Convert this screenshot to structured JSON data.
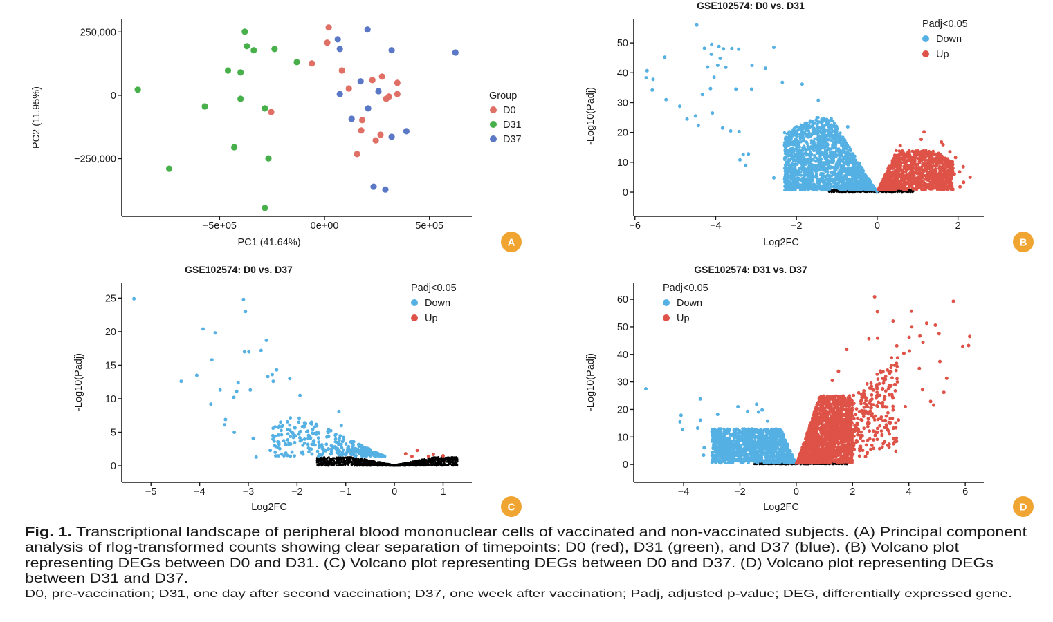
{
  "colors": {
    "D0": "#e06f66",
    "D31": "#47b04b",
    "D37": "#5b78c6",
    "down": "#55b0e3",
    "up": "#de5247",
    "ns": "#000000",
    "badge": "#f0a431"
  },
  "chart_data": [
    {
      "panel": "A",
      "type": "scatter",
      "title": "",
      "xlabel": "PC1 (41.64%)",
      "ylabel": "PC2 (11.95%)",
      "xlim": [
        -966000,
        702000
      ],
      "ylim": [
        -478000,
        300000
      ],
      "xticks": [
        {
          "v": -500000,
          "label": "−5e+05"
        },
        {
          "v": 0,
          "label": "0e+00"
        },
        {
          "v": 500000,
          "label": "5e+05"
        }
      ],
      "yticks": [
        {
          "v": 250000,
          "label": "250,000"
        },
        {
          "v": 0,
          "label": "0"
        },
        {
          "v": -250000,
          "label": "−250,000"
        }
      ],
      "legend": {
        "title": "Group",
        "position": "right"
      },
      "series": [
        {
          "name": "D0",
          "color_key": "D0",
          "points": [
            [
              20000,
              268000
            ],
            [
              13000,
              208000
            ],
            [
              -60000,
              126000
            ],
            [
              83000,
              98000
            ],
            [
              274000,
              74000
            ],
            [
              228000,
              60000
            ],
            [
              347000,
              49000
            ],
            [
              116000,
              27000
            ],
            [
              347000,
              5000
            ],
            [
              307000,
              -5000
            ],
            [
              294000,
              -14000
            ],
            [
              -254000,
              -66000
            ],
            [
              180000,
              -98000
            ],
            [
              175000,
              -139000
            ],
            [
              267000,
              -156000
            ],
            [
              244000,
              -178000
            ],
            [
              155000,
              -232000
            ]
          ]
        },
        {
          "name": "D31",
          "color_key": "D31",
          "points": [
            [
              -380000,
              251000
            ],
            [
              -370000,
              194000
            ],
            [
              -337000,
              178000
            ],
            [
              -238000,
              183000
            ],
            [
              -132000,
              131000
            ],
            [
              -460000,
              98000
            ],
            [
              -400000,
              90000
            ],
            [
              -890000,
              22000
            ],
            [
              -400000,
              -14000
            ],
            [
              -570000,
              -44000
            ],
            [
              -284000,
              -52000
            ],
            [
              -430000,
              -205000
            ],
            [
              -267000,
              -249000
            ],
            [
              -740000,
              -290000
            ],
            [
              -284000,
              -445000
            ]
          ]
        },
        {
          "name": "D37",
          "color_key": "D37",
          "points": [
            [
              205000,
              260000
            ],
            [
              63000,
              221000
            ],
            [
              73000,
              183000
            ],
            [
              320000,
              178000
            ],
            [
              624000,
              169000
            ],
            [
              172000,
              55000
            ],
            [
              257000,
              16000
            ],
            [
              73000,
              5000
            ],
            [
              208000,
              -52000
            ],
            [
              129000,
              -93000
            ],
            [
              390000,
              -142000
            ],
            [
              320000,
              -164000
            ],
            [
              234000,
              -361000
            ],
            [
              290000,
              -372000
            ]
          ]
        }
      ]
    },
    {
      "panel": "B",
      "type": "scatter",
      "title": "GSE102574: D0 vs. D31",
      "xlabel": "Log2FC",
      "ylabel": "-Log10(Padj)",
      "xlim": [
        -6.03,
        2.64
      ],
      "ylim": [
        -8.1,
        57.9
      ],
      "xticks": [
        {
          "v": -6,
          "label": "−6"
        },
        {
          "v": -4,
          "label": "−4"
        },
        {
          "v": -2,
          "label": "−2"
        },
        {
          "v": 0,
          "label": "0"
        },
        {
          "v": 2,
          "label": "2"
        }
      ],
      "yticks": [
        {
          "v": 0,
          "label": "0"
        },
        {
          "v": 10,
          "label": "10"
        },
        {
          "v": 20,
          "label": "20"
        },
        {
          "v": 30,
          "label": "30"
        },
        {
          "v": 40,
          "label": "40"
        },
        {
          "v": 50,
          "label": "50"
        }
      ],
      "legend": {
        "title": "Padj<0.05",
        "position": "top-right"
      },
      "series": [
        {
          "name": "Down",
          "color_key": "down",
          "points": [
            [
              -4.47,
              56
            ],
            [
              -5.26,
              45.2
            ],
            [
              -5.7,
              40.7
            ],
            [
              -5.72,
              38.3
            ],
            [
              -5.55,
              37.8
            ],
            [
              -5.57,
              34.2
            ],
            [
              -5.23,
              31
            ],
            [
              -4.89,
              28.8
            ],
            [
              -4.71,
              24.5
            ],
            [
              -4.5,
              25.5
            ],
            [
              -4.43,
              22.3
            ],
            [
              -4.28,
              48.2
            ],
            [
              -4.1,
              49.5
            ],
            [
              -3.92,
              48.8
            ],
            [
              -3.81,
              48
            ],
            [
              -3.6,
              48.1
            ],
            [
              -3.43,
              47.9
            ],
            [
              -2.56,
              48.5
            ],
            [
              -4.11,
              46.2
            ],
            [
              -3.89,
              44.8
            ],
            [
              -4.2,
              41.9
            ],
            [
              -3.95,
              42.5
            ],
            [
              -3.75,
              41.8
            ],
            [
              -3.1,
              42.5
            ],
            [
              -2.77,
              41.5
            ],
            [
              -4.04,
              38.5
            ],
            [
              -4.13,
              34.7
            ],
            [
              -4.33,
              32.7
            ],
            [
              -4.08,
              26.5
            ],
            [
              -3.83,
              21.5
            ],
            [
              -3.63,
              20.5
            ],
            [
              -3.42,
              20.3
            ],
            [
              -1.86,
              36.2
            ],
            [
              -2.35,
              36.8
            ],
            [
              -3.5,
              34.5
            ],
            [
              -3.11,
              34.5
            ],
            [
              -3.32,
              12.6
            ],
            [
              -3.19,
              12.8
            ],
            [
              -3.4,
              10.8
            ],
            [
              -3.26,
              9
            ],
            [
              -2.56,
              4.8
            ],
            [
              -1.99,
              2
            ],
            [
              -1.46,
              30.8
            ],
            [
              -0.73,
              21.9
            ]
          ]
        },
        {
          "name": "Up",
          "color_key": "up",
          "points": [
            [
              1.16,
              20.2
            ],
            [
              1.09,
              17.7
            ],
            [
              1.59,
              16.8
            ],
            [
              1.63,
              15.9
            ],
            [
              1.8,
              13.5
            ],
            [
              1.94,
              11.6
            ],
            [
              2.13,
              8.5
            ],
            [
              2.3,
              5
            ],
            [
              2.14,
              3.3
            ],
            [
              2.05,
              1.8
            ],
            [
              0.57,
              15.6
            ],
            [
              1.91,
              6.1
            ],
            [
              2.04,
              6.8
            ]
          ]
        }
      ]
    },
    {
      "panel": "C",
      "type": "scatter",
      "title": "GSE102574: D0 vs. D37",
      "xlabel": "Log2FC",
      "ylabel": "-Log10(Padj)",
      "xlim": [
        -5.6,
        1.59
      ],
      "ylim": [
        -2.47,
        27.2
      ],
      "xticks": [
        {
          "v": -5,
          "label": "−5"
        },
        {
          "v": -4,
          "label": "−4"
        },
        {
          "v": -3,
          "label": "−3"
        },
        {
          "v": -2,
          "label": "−2"
        },
        {
          "v": -1,
          "label": "−1"
        },
        {
          "v": 0,
          "label": "0"
        },
        {
          "v": 1,
          "label": "1"
        }
      ],
      "yticks": [
        {
          "v": 0,
          "label": "0"
        },
        {
          "v": 5,
          "label": "5"
        },
        {
          "v": 10,
          "label": "10"
        },
        {
          "v": 15,
          "label": "15"
        },
        {
          "v": 20,
          "label": "20"
        },
        {
          "v": 25,
          "label": "25"
        }
      ],
      "legend": {
        "title": "Padj<0.05",
        "position": "top-right"
      },
      "series": [
        {
          "name": "Down",
          "color_key": "down",
          "points": [
            [
              -5.35,
              24.9
            ],
            [
              -3.1,
              24.8
            ],
            [
              -3.06,
              23
            ],
            [
              -3.93,
              20.4
            ],
            [
              -3.68,
              19.8
            ],
            [
              -2.63,
              18.7
            ],
            [
              -3.08,
              17
            ],
            [
              -2.99,
              17
            ],
            [
              -2.74,
              17.2
            ],
            [
              -3.75,
              15.8
            ],
            [
              -4.06,
              13.5
            ],
            [
              -4.38,
              12.6
            ],
            [
              -2.42,
              14.3
            ],
            [
              -2.51,
              13.6
            ],
            [
              -2.6,
              13.3
            ],
            [
              -2.49,
              12.6
            ],
            [
              -2.15,
              13
            ],
            [
              -3.21,
              12.4
            ],
            [
              -3.58,
              11.3
            ],
            [
              -2.96,
              11.3
            ],
            [
              -3.24,
              11.1
            ],
            [
              -3.3,
              10.2
            ],
            [
              -3.77,
              9.2
            ],
            [
              -3.47,
              6.9
            ],
            [
              -3.49,
              6.1
            ],
            [
              -3.29,
              5
            ],
            [
              -2.9,
              4.1
            ],
            [
              -2.84,
              1.3
            ],
            [
              -2.55,
              2.3
            ],
            [
              -1.94,
              10.5
            ],
            [
              -1.14,
              8.1
            ],
            [
              -1.09,
              6
            ],
            [
              -2.23,
              1.9
            ]
          ]
        },
        {
          "name": "Up",
          "color_key": "up",
          "points": [
            [
              0.23,
              1.8
            ],
            [
              0.36,
              1.4
            ],
            [
              0.47,
              2.3
            ],
            [
              0.7,
              1.4
            ],
            [
              0.8,
              1.7
            ],
            [
              1.0,
              1.5
            ]
          ]
        }
      ]
    },
    {
      "panel": "D",
      "type": "scatter",
      "title": "GSE102574: D31 vs. D37",
      "xlabel": "Log2FC",
      "ylabel": "-Log10(Padj)",
      "xlim": [
        -5.77,
        6.66
      ],
      "ylim": [
        -6.5,
        65.8
      ],
      "xticks": [
        {
          "v": -4,
          "label": "−4"
        },
        {
          "v": -2,
          "label": "−2"
        },
        {
          "v": 0,
          "label": "0"
        },
        {
          "v": 2,
          "label": "2"
        },
        {
          "v": 4,
          "label": "4"
        },
        {
          "v": 6,
          "label": "6"
        }
      ],
      "yticks": [
        {
          "v": 0,
          "label": "0"
        },
        {
          "v": 10,
          "label": "10"
        },
        {
          "v": 20,
          "label": "20"
        },
        {
          "v": 30,
          "label": "30"
        },
        {
          "v": 40,
          "label": "40"
        },
        {
          "v": 50,
          "label": "50"
        },
        {
          "v": 60,
          "label": "60"
        }
      ],
      "legend": {
        "title": "Padj<0.05",
        "position": "top-left"
      },
      "series": [
        {
          "name": "Down",
          "color_key": "down",
          "points": [
            [
              -5.34,
              27.5
            ],
            [
              -3.41,
              23.8
            ],
            [
              -4.09,
              17.9
            ],
            [
              -4.13,
              15.5
            ],
            [
              -4.04,
              12.7
            ],
            [
              -3.4,
              16.1
            ],
            [
              -2.07,
              21
            ],
            [
              -1.41,
              21.9
            ],
            [
              -1.73,
              19.3
            ],
            [
              -1.34,
              19.1
            ],
            [
              -1.21,
              19.8
            ],
            [
              -2.79,
              18.2
            ],
            [
              -3.29,
              3.4
            ],
            [
              -2.93,
              2.3
            ],
            [
              -3.27,
              6.1
            ],
            [
              -3.5,
              13.2
            ],
            [
              -1.02,
              15.8
            ]
          ]
        },
        {
          "name": "Up",
          "color_key": "up",
          "points": [
            [
              2.78,
              60.9
            ],
            [
              5.58,
              59.3
            ],
            [
              2.88,
              55.5
            ],
            [
              4.09,
              55.7
            ],
            [
              3.44,
              52.1
            ],
            [
              4.63,
              51.3
            ],
            [
              4.94,
              50.6
            ],
            [
              4.1,
              50
            ],
            [
              5.07,
              47.5
            ],
            [
              6.16,
              46.5
            ],
            [
              4.39,
              46.7
            ],
            [
              4.01,
              46.2
            ],
            [
              2.58,
              45.7
            ],
            [
              2.89,
              45.9
            ],
            [
              3.57,
              43.1
            ],
            [
              5.91,
              42.9
            ],
            [
              6.12,
              43.2
            ],
            [
              4.5,
              44.3
            ],
            [
              1.79,
              41.8
            ],
            [
              4.02,
              41.2
            ],
            [
              3.82,
              40.4
            ],
            [
              5.1,
              37.4
            ],
            [
              3.56,
              36.7
            ],
            [
              4.37,
              34.9
            ],
            [
              5.34,
              31.3
            ],
            [
              4.48,
              27.2
            ],
            [
              5.24,
              26.2
            ],
            [
              4.77,
              22.9
            ],
            [
              4.88,
              21.6
            ],
            [
              3.87,
              21
            ],
            [
              3.56,
              8.4
            ],
            [
              3.3,
              7.4
            ],
            [
              2.46,
              2.9
            ],
            [
              3.63,
              16.2
            ],
            [
              1.28,
              30.5
            ],
            [
              1.5,
              33.9
            ]
          ]
        }
      ]
    }
  ],
  "panels": {
    "A": "A",
    "B": "B",
    "C": "C",
    "D": "D"
  },
  "caption": {
    "label": "Fig. 1.",
    "lines": [
      "Transcriptional landscape of peripheral blood mononuclear cells of vaccinated and non-vaccinated subjects. (A) Principal component",
      "analysis of rlog-transformed counts showing clear separation of timepoints: D0 (red), D31 (green), and D37 (blue). (B) Volcano plot",
      "representing DEGs between D0 and D31. (C) Volcano plot representing DEGs between D0 and D37. (D) Volcano plot representing DEGs",
      "between D31 and D37."
    ],
    "footnote": "D0, pre-vaccination; D31, one day after second vaccination; D37, one week after vaccination; Padj, adjusted p-value; DEG, differentially expressed gene."
  }
}
